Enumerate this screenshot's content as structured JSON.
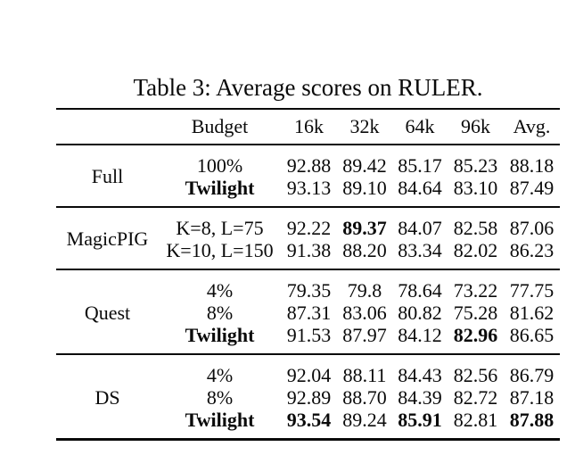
{
  "caption": "Table 3: Average scores on RULER.",
  "table": {
    "header": {
      "budget": "Budget",
      "cols": [
        "16k",
        "32k",
        "64k",
        "96k",
        "Avg."
      ]
    },
    "groups": [
      {
        "name": "Full",
        "rows": [
          {
            "budget": "100%",
            "budget_bold": false,
            "values": [
              "92.88",
              "89.42",
              "85.17",
              "85.23",
              "88.18"
            ],
            "bold_values": [
              false,
              false,
              false,
              false,
              false
            ]
          },
          {
            "budget": "Twilight",
            "budget_bold": true,
            "values": [
              "93.13",
              "89.10",
              "84.64",
              "83.10",
              "87.49"
            ],
            "bold_values": [
              false,
              false,
              false,
              false,
              false
            ]
          }
        ]
      },
      {
        "name": "MagicPIG",
        "rows": [
          {
            "budget": "K=8, L=75",
            "budget_bold": false,
            "values": [
              "92.22",
              "89.37",
              "84.07",
              "82.58",
              "87.06"
            ],
            "bold_values": [
              false,
              true,
              false,
              false,
              false
            ]
          },
          {
            "budget": "K=10, L=150",
            "budget_bold": false,
            "values": [
              "91.38",
              "88.20",
              "83.34",
              "82.02",
              "86.23"
            ],
            "bold_values": [
              false,
              false,
              false,
              false,
              false
            ]
          }
        ]
      },
      {
        "name": "Quest",
        "rows": [
          {
            "budget": "4%",
            "budget_bold": false,
            "values": [
              "79.35",
              "79.8",
              "78.64",
              "73.22",
              "77.75"
            ],
            "bold_values": [
              false,
              false,
              false,
              false,
              false
            ]
          },
          {
            "budget": "8%",
            "budget_bold": false,
            "values": [
              "87.31",
              "83.06",
              "80.82",
              "75.28",
              "81.62"
            ],
            "bold_values": [
              false,
              false,
              false,
              false,
              false
            ]
          },
          {
            "budget": "Twilight",
            "budget_bold": true,
            "values": [
              "91.53",
              "87.97",
              "84.12",
              "82.96",
              "86.65"
            ],
            "bold_values": [
              false,
              false,
              false,
              true,
              false
            ]
          }
        ]
      },
      {
        "name": "DS",
        "rows": [
          {
            "budget": "4%",
            "budget_bold": false,
            "values": [
              "92.04",
              "88.11",
              "84.43",
              "82.56",
              "86.79"
            ],
            "bold_values": [
              false,
              false,
              false,
              false,
              false
            ]
          },
          {
            "budget": "8%",
            "budget_bold": false,
            "values": [
              "92.89",
              "88.70",
              "84.39",
              "82.72",
              "87.18"
            ],
            "bold_values": [
              false,
              false,
              false,
              false,
              false
            ]
          },
          {
            "budget": "Twilight",
            "budget_bold": true,
            "values": [
              "93.54",
              "89.24",
              "85.91",
              "82.81",
              "87.88"
            ],
            "bold_values": [
              true,
              false,
              true,
              false,
              true
            ]
          }
        ]
      }
    ]
  }
}
